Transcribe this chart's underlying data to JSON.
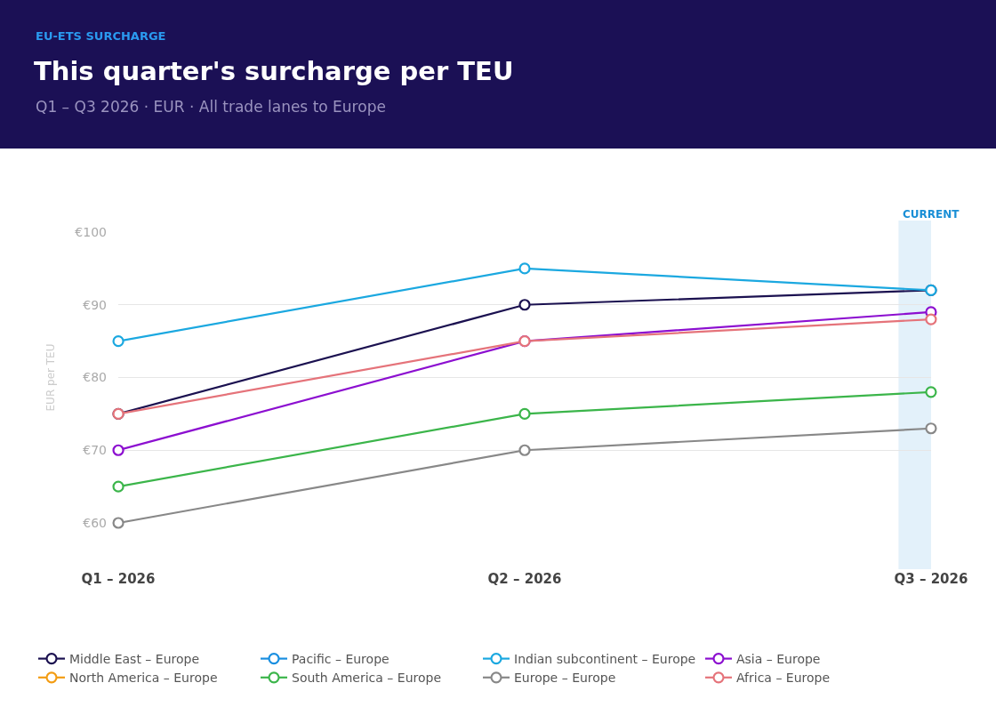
{
  "chart_data": {
    "type": "line",
    "title": "This quarter's surcharge per TEU",
    "subtitle": "Q1 – Q3 2026 · EUR · All trade lanes to Europe",
    "annotations": [
      "EU-ETS SURCHARGE"
    ],
    "ylabel": "EUR per TEU",
    "categories": [
      "Q1 – 2026",
      "Q2 – 2026",
      "Q3 – 2026"
    ],
    "series": [
      {
        "name": "Middle East – Europe",
        "color": "#1b1150",
        "values": [
          75,
          90,
          92
        ]
      },
      {
        "name": "Pacific – Europe",
        "color": "#1a8fe0",
        "values": [
          null,
          null,
          null
        ]
      },
      {
        "name": "Indian subcontinent – Europe",
        "color": "#1ba8e0",
        "values": [
          85,
          95,
          92
        ]
      },
      {
        "name": "Asia – Europe",
        "color": "#8c0fd0",
        "values": [
          70,
          85,
          89
        ]
      },
      {
        "name": "North America – Europe",
        "color": "#f39c12",
        "values": [
          null,
          null,
          null
        ]
      },
      {
        "name": "South America – Europe",
        "color": "#3bb54a",
        "values": [
          65,
          75,
          78
        ]
      },
      {
        "name": "Europe – Europe",
        "color": "#888888",
        "values": [
          60,
          70,
          73
        ]
      },
      {
        "name": "Africa – Europe",
        "color": "#e5737a",
        "values": [
          75,
          85,
          88
        ]
      }
    ],
    "ylim": [
      60,
      100
    ],
    "yticks": [
      {
        "value": 60,
        "label": "€60"
      },
      {
        "value": 70,
        "label": "€70"
      },
      {
        "value": 80,
        "label": "€80"
      },
      {
        "value": 90,
        "label": "€90"
      },
      {
        "value": 100,
        "label": "€100"
      }
    ],
    "bands": [
      {
        "axis": "x",
        "from": "Q3 – 2026",
        "to": "Q3 – 2026",
        "label": "CURRENT",
        "color": "#e3f1fa"
      }
    ],
    "grid": "y",
    "legend": "bottom",
    "marker": "circle",
    "line_style": "solid"
  }
}
